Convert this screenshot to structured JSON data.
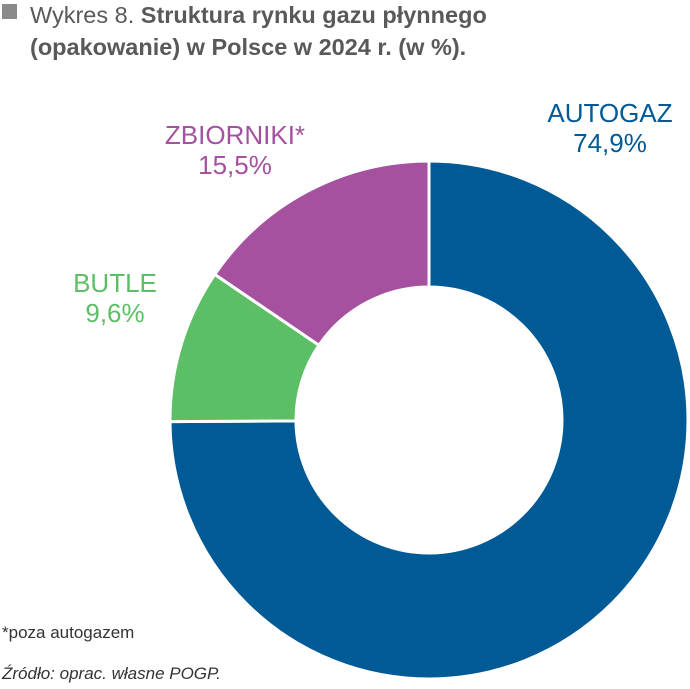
{
  "header": {
    "prefix": "Wykres 8.",
    "title_line1": "Struktura rynku gazu płynnego",
    "title_line2": "(opakowanie) w Polsce w 2024 r. (w %)."
  },
  "chart_data": {
    "type": "pie",
    "variant": "donut",
    "title": "Wykres 8. Struktura rynku gazu płynnego (opakowanie) w Polsce w 2024 r. (w %).",
    "unit": "%",
    "categories": [
      "AUTOGAZ",
      "BUTLE",
      "ZBIORNIKI*"
    ],
    "values": [
      74.9,
      9.6,
      15.5
    ],
    "value_labels": [
      "74,9%",
      "9,6%",
      "15,5%"
    ],
    "colors": [
      "#005a96",
      "#5cbf66",
      "#a5519f"
    ],
    "legend": "labels-outside"
  },
  "footer": {
    "note": "*poza autogazem",
    "source": "Źródło: oprac. własne POGP."
  }
}
